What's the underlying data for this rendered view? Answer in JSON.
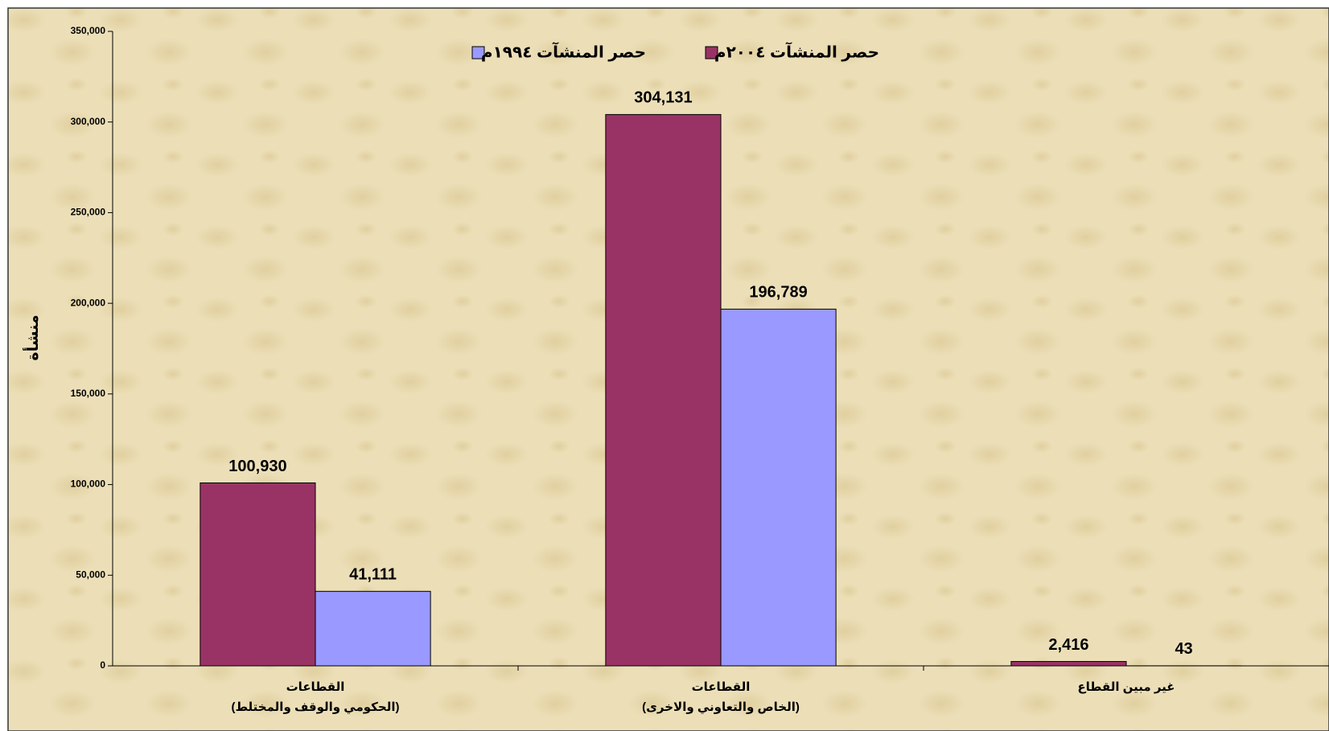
{
  "chart_data": {
    "type": "bar",
    "y_label": "منشأة",
    "categories": [
      [
        "القطاعات",
        "(الحكومي والوقف والمختلط)"
      ],
      [
        "القطاعات",
        "(الخاص والتعاوني والاخرى)"
      ],
      [
        "غير مبين القطاع"
      ]
    ],
    "series": [
      {
        "name": "حصر المنشآت ٢٠٠٤م",
        "color": "#993366",
        "values": [
          100930,
          304131,
          2416
        ],
        "value_labels": [
          "100,930",
          "304,131",
          "2,416"
        ]
      },
      {
        "name": "حصر المنشآت ١٩٩٤م",
        "color": "#9999ff",
        "values": [
          41111,
          196789,
          43
        ],
        "value_labels": [
          "41,111",
          "196,789",
          "43"
        ]
      }
    ],
    "ylim": [
      0,
      350000
    ],
    "yticks": [
      0,
      {
        "value": 50000,
        "label": "50,000"
      },
      {
        "value": 100000,
        "label": "100,000"
      },
      {
        "value": 150000,
        "label": "150,000"
      },
      {
        "value": 200000,
        "label": "200,000"
      },
      {
        "value": 250000,
        "label": "250,000"
      },
      {
        "value": 300000,
        "label": "300,000"
      },
      {
        "value": 350000,
        "label": "350,000"
      }
    ],
    "legend": "top"
  }
}
